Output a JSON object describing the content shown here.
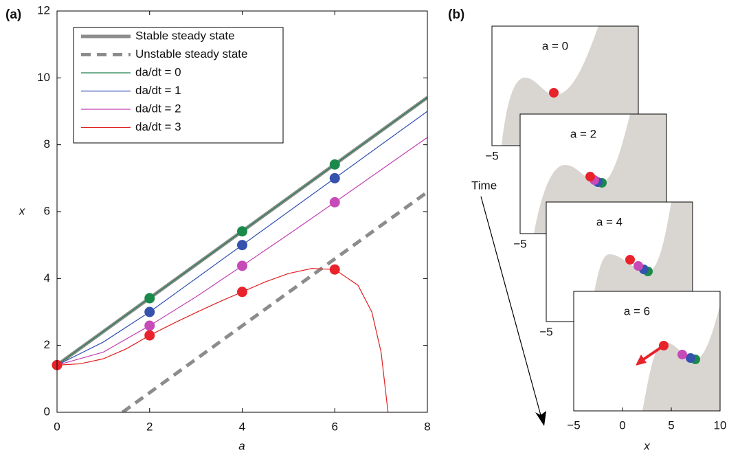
{
  "chart_data": [
    {
      "type": "line",
      "panel_label": "(a)",
      "xlabel": "a",
      "ylabel": "x",
      "xlim": [
        0,
        8
      ],
      "ylim": [
        0,
        12
      ],
      "xticks": [
        0,
        2,
        4,
        6,
        8
      ],
      "yticks": [
        0,
        2,
        4,
        6,
        8,
        10,
        12
      ],
      "series": [
        {
          "name": "Stable steady state",
          "color": "#8c8c8c",
          "linestyle": "thick",
          "x": [
            0,
            8
          ],
          "values": [
            1.414,
            9.414
          ]
        },
        {
          "name": "Unstable steady state",
          "color": "#8c8c8c",
          "linestyle": "thick-dashed",
          "x": [
            1.414,
            8
          ],
          "values": [
            0,
            6.586
          ]
        },
        {
          "name": "da/dt = 0",
          "color": "#1a7f4b",
          "linestyle": "thin",
          "x": [
            0,
            8
          ],
          "values": [
            1.414,
            9.414
          ],
          "points": {
            "color": "#1a8a4a",
            "x": [
              2,
              4,
              6
            ],
            "values": [
              3.41,
              5.41,
              7.41
            ]
          }
        },
        {
          "name": "da/dt = 1",
          "color": "#3050b0",
          "linestyle": "thin",
          "x": [
            0,
            1,
            2,
            3,
            4,
            5,
            6,
            7,
            8
          ],
          "values": [
            1.41,
            2.1,
            3.0,
            4.0,
            5.0,
            6.0,
            7.0,
            8.0,
            9.0
          ],
          "points": {
            "color": "#3552ad",
            "x": [
              2,
              4,
              6
            ],
            "values": [
              3.0,
              5.0,
              7.0
            ]
          }
        },
        {
          "name": "da/dt = 2",
          "color": "#c040b0",
          "linestyle": "thin",
          "x": [
            0,
            1,
            2,
            3,
            4,
            5,
            6,
            7,
            8
          ],
          "values": [
            1.41,
            1.8,
            2.59,
            3.45,
            4.38,
            5.32,
            6.28,
            7.25,
            8.22
          ],
          "points": {
            "color": "#c64ab8",
            "x": [
              2,
              4,
              6
            ],
            "values": [
              2.59,
              4.38,
              6.28
            ]
          }
        },
        {
          "name": "da/dt = 3",
          "color": "#e02020",
          "linestyle": "thin",
          "x": [
            0,
            0.5,
            1,
            1.5,
            2,
            2.5,
            3,
            3.5,
            4,
            4.5,
            5,
            5.5,
            6,
            6.5,
            6.8,
            7,
            7.15
          ],
          "values": [
            1.41,
            1.45,
            1.6,
            1.9,
            2.3,
            2.65,
            2.98,
            3.3,
            3.6,
            3.9,
            4.15,
            4.3,
            4.27,
            3.8,
            3.0,
            1.8,
            0
          ],
          "points": {
            "color": "#e8232b",
            "x": [
              0,
              2,
              4,
              6
            ],
            "values": [
              1.41,
              2.3,
              3.6,
              4.27
            ]
          }
        }
      ]
    },
    {
      "type": "landscape",
      "panel_label": "(b)",
      "xlabel": "x",
      "time_label": "Time",
      "xlim": [
        -5,
        10
      ],
      "xticks": [
        {
          "value": -5,
          "label": "−5"
        },
        0,
        5,
        10
      ],
      "panels": [
        {
          "label": "a = 0"
        },
        {
          "label": "a = 2"
        },
        {
          "label": "a = 4"
        },
        {
          "label": "a = 6"
        }
      ]
    }
  ]
}
